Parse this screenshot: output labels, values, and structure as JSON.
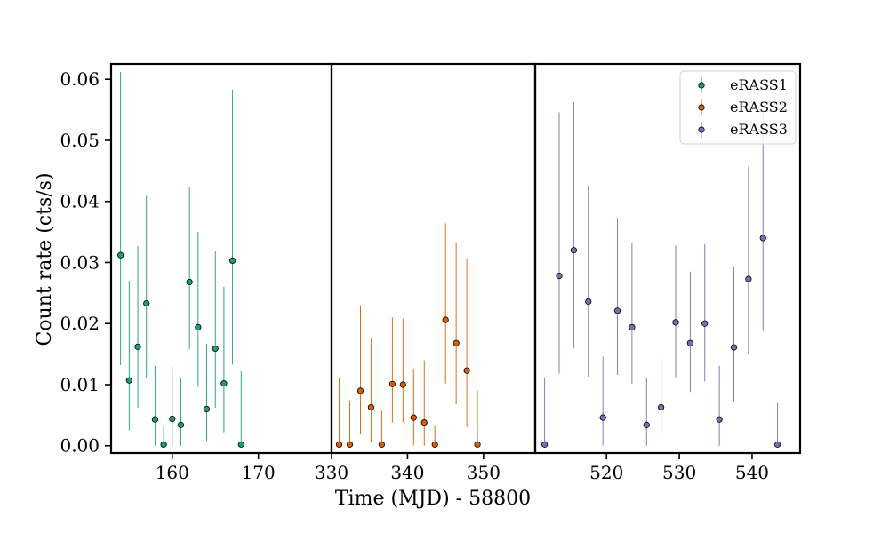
{
  "chart_data": {
    "type": "scatter",
    "subtype": "errorbar-broken-x-axis",
    "xlabel": "Time (MJD) - 58800",
    "ylabel": "Count rate (cts/s)",
    "ylim": [
      -0.0012,
      0.0625
    ],
    "y_ticks": [
      0.0,
      0.01,
      0.02,
      0.03,
      0.04,
      0.05,
      0.06
    ],
    "y_tick_labels": [
      "0.00",
      "0.01",
      "0.02",
      "0.03",
      "0.04",
      "0.05",
      "0.06"
    ],
    "grid": false,
    "legend": {
      "position": "top-right",
      "entries": [
        "eRASS1",
        "eRASS2",
        "eRASS3"
      ]
    },
    "panels": [
      {
        "xlim": [
          152.9,
          178.5
        ],
        "x_ticks": [
          160,
          170
        ],
        "x_tick_labels": [
          "160",
          "170"
        ]
      },
      {
        "xlim": [
          330.0,
          356.8
        ],
        "x_ticks": [
          330,
          340,
          350
        ],
        "x_tick_labels": [
          "330",
          "340",
          "350"
        ]
      },
      {
        "xlim": [
          510.2,
          546.6
        ],
        "x_ticks": [
          520,
          530,
          540
        ],
        "x_tick_labels": [
          "520",
          "530",
          "540"
        ]
      }
    ],
    "series": [
      {
        "name": "eRASS1",
        "color": "#1b9e77",
        "panel": 0,
        "x": [
          154.0,
          155.0,
          156.0,
          157.0,
          158.0,
          159.0,
          160.0,
          161.0,
          162.0,
          163.0,
          164.0,
          165.0,
          166.0,
          167.0,
          168.0
        ],
        "y": [
          0.0312,
          0.0107,
          0.0162,
          0.0233,
          0.0043,
          0.0002,
          0.0044,
          0.0034,
          0.0268,
          0.0194,
          0.006,
          0.0159,
          0.0102,
          0.0303,
          0.0002
        ],
        "yerr_low": [
          0.018,
          0.0082,
          0.01,
          0.0123,
          0.0043,
          0.0002,
          0.0044,
          0.0034,
          0.011,
          0.0098,
          0.0052,
          0.0097,
          0.008,
          0.017,
          0.0002
        ],
        "yerr_high": [
          0.03,
          0.0163,
          0.0165,
          0.0176,
          0.0088,
          0.003,
          0.0085,
          0.0077,
          0.0155,
          0.0156,
          0.0106,
          0.0159,
          0.0158,
          0.028,
          0.012
        ]
      },
      {
        "name": "eRASS2",
        "color": "#d95f02",
        "panel": 1,
        "x": [
          331.0,
          332.4,
          333.8,
          335.2,
          336.6,
          338.0,
          339.4,
          340.8,
          342.2,
          343.6,
          345.0,
          346.4,
          347.8,
          349.2
        ],
        "y": [
          0.0002,
          0.0002,
          0.009,
          0.0063,
          0.0002,
          0.0101,
          0.01,
          0.0046,
          0.0038,
          0.0002,
          0.0206,
          0.0168,
          0.0123,
          0.0002
        ],
        "yerr_low": [
          0.0002,
          0.0002,
          0.007,
          0.0058,
          0.0002,
          0.0063,
          0.0062,
          0.0046,
          0.0038,
          0.0002,
          0.0104,
          0.01,
          0.0093,
          0.0002
        ],
        "yerr_high": [
          0.011,
          0.0072,
          0.014,
          0.0114,
          0.0055,
          0.0109,
          0.0108,
          0.008,
          0.0102,
          0.0032,
          0.0158,
          0.0165,
          0.0184,
          0.0088
        ]
      },
      {
        "name": "eRASS3",
        "color": "#7570b3",
        "panel": 2,
        "x": [
          511.5,
          513.5,
          515.5,
          517.5,
          519.5,
          521.5,
          523.5,
          525.5,
          527.5,
          529.5,
          531.5,
          533.5,
          535.5,
          537.5,
          539.5,
          541.5,
          543.5
        ],
        "y": [
          0.0002,
          0.0278,
          0.032,
          0.0236,
          0.0046,
          0.0221,
          0.0194,
          0.0034,
          0.0063,
          0.0202,
          0.0168,
          0.02,
          0.0043,
          0.0161,
          0.0273,
          0.034,
          0.0002
        ],
        "yerr_low": [
          0.0002,
          0.016,
          0.016,
          0.0123,
          0.0046,
          0.0105,
          0.0093,
          0.0034,
          0.0048,
          0.009,
          0.008,
          0.0095,
          0.0043,
          0.0088,
          0.0123,
          0.0152,
          0.0002
        ],
        "yerr_high": [
          0.011,
          0.0268,
          0.0242,
          0.019,
          0.01,
          0.0152,
          0.0138,
          0.0078,
          0.0085,
          0.0126,
          0.0117,
          0.013,
          0.0088,
          0.0131,
          0.0184,
          0.021,
          0.0068
        ]
      }
    ]
  }
}
